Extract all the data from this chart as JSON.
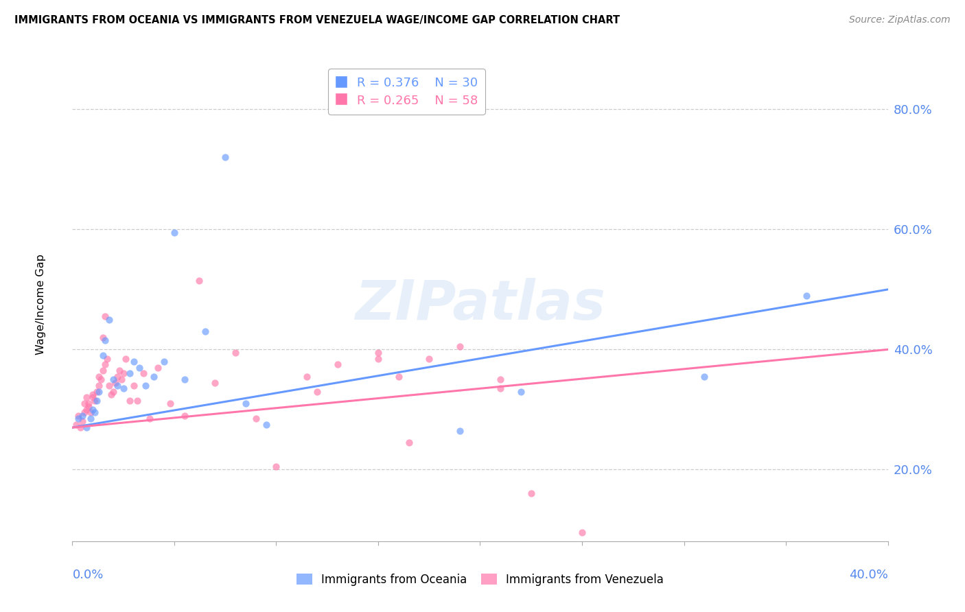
{
  "title": "IMMIGRANTS FROM OCEANIA VS IMMIGRANTS FROM VENEZUELA WAGE/INCOME GAP CORRELATION CHART",
  "source": "Source: ZipAtlas.com",
  "ylabel": "Wage/Income Gap",
  "y_ticks": [
    0.2,
    0.4,
    0.6,
    0.8
  ],
  "y_tick_labels": [
    "20.0%",
    "40.0%",
    "60.0%",
    "80.0%"
  ],
  "xmin": 0.0,
  "xmax": 0.4,
  "ymin": 0.08,
  "ymax": 0.87,
  "color_oceania": "#6699FF",
  "color_venezuela": "#FF77AA",
  "watermark": "ZIPatlas",
  "legend_r1": "R = 0.376",
  "legend_n1": "N = 30",
  "legend_r2": "R = 0.265",
  "legend_n2": "N = 58",
  "oceania_x": [
    0.003,
    0.005,
    0.007,
    0.009,
    0.01,
    0.011,
    0.012,
    0.013,
    0.015,
    0.016,
    0.018,
    0.02,
    0.022,
    0.025,
    0.028,
    0.03,
    0.033,
    0.036,
    0.04,
    0.045,
    0.05,
    0.055,
    0.065,
    0.075,
    0.085,
    0.095,
    0.19,
    0.22,
    0.31,
    0.36
  ],
  "oceania_y": [
    0.285,
    0.29,
    0.27,
    0.285,
    0.3,
    0.295,
    0.315,
    0.33,
    0.39,
    0.415,
    0.45,
    0.35,
    0.34,
    0.335,
    0.36,
    0.38,
    0.37,
    0.34,
    0.355,
    0.38,
    0.595,
    0.35,
    0.43,
    0.72,
    0.31,
    0.275,
    0.265,
    0.33,
    0.355,
    0.49
  ],
  "venezuela_x": [
    0.002,
    0.003,
    0.004,
    0.005,
    0.006,
    0.006,
    0.007,
    0.007,
    0.008,
    0.008,
    0.009,
    0.01,
    0.01,
    0.011,
    0.012,
    0.013,
    0.013,
    0.014,
    0.015,
    0.015,
    0.016,
    0.016,
    0.017,
    0.018,
    0.019,
    0.02,
    0.021,
    0.022,
    0.023,
    0.024,
    0.025,
    0.026,
    0.028,
    0.03,
    0.032,
    0.035,
    0.038,
    0.042,
    0.048,
    0.055,
    0.062,
    0.07,
    0.08,
    0.09,
    0.1,
    0.115,
    0.13,
    0.15,
    0.165,
    0.175,
    0.19,
    0.21,
    0.225,
    0.25,
    0.15,
    0.16,
    0.21,
    0.12
  ],
  "venezuela_y": [
    0.275,
    0.29,
    0.27,
    0.28,
    0.295,
    0.31,
    0.3,
    0.32,
    0.305,
    0.31,
    0.295,
    0.32,
    0.325,
    0.315,
    0.33,
    0.34,
    0.355,
    0.35,
    0.365,
    0.42,
    0.375,
    0.455,
    0.385,
    0.34,
    0.325,
    0.33,
    0.345,
    0.355,
    0.365,
    0.35,
    0.36,
    0.385,
    0.315,
    0.34,
    0.315,
    0.36,
    0.285,
    0.37,
    0.31,
    0.29,
    0.515,
    0.345,
    0.395,
    0.285,
    0.205,
    0.355,
    0.375,
    0.395,
    0.245,
    0.385,
    0.405,
    0.335,
    0.16,
    0.095,
    0.385,
    0.355,
    0.35,
    0.33
  ]
}
